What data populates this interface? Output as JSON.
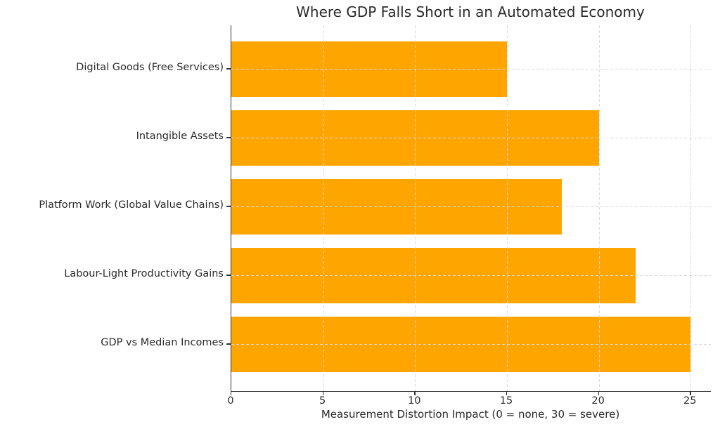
{
  "chart_data": {
    "type": "bar",
    "orientation": "horizontal",
    "title": "Where GDP Falls Short in an Automated Economy",
    "xlabel": "Measurement Distortion Impact (0 = none, 30 = severe)",
    "ylabel": "",
    "categories": [
      "Digital Goods (Free Services)",
      "Intangible Assets",
      "Platform Work (Global Value Chains)",
      "Labour-Light Productivity Gains",
      "GDP vs Median Incomes"
    ],
    "values": [
      15,
      20,
      18,
      22,
      25
    ],
    "xticks": [
      0,
      5,
      10,
      15,
      20,
      25
    ],
    "xlim": [
      0,
      26.1
    ],
    "grid": true,
    "grid_style": "dashed",
    "legend": "none",
    "bar_color": "#FFA500",
    "grid_color": "#d9d9d9",
    "axis_color": "#333333",
    "text_color": "#2b2b2b",
    "background_color": "#ffffff"
  }
}
